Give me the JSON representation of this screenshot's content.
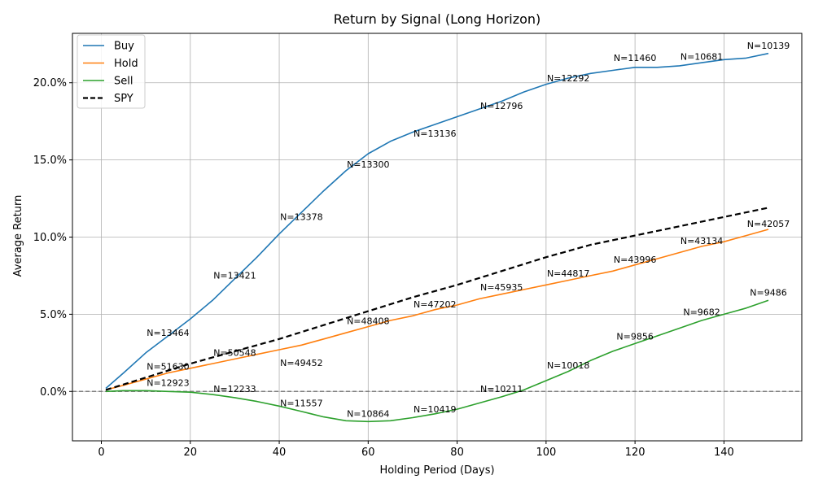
{
  "chart_data": {
    "type": "line",
    "title": "Return by Signal (Long Horizon)",
    "xlabel": "Holding Period (Days)",
    "ylabel": "Average Return",
    "xlim": [
      -6.5,
      157.5
    ],
    "ylim": [
      -0.032,
      0.232
    ],
    "xticks": [
      0,
      20,
      40,
      60,
      80,
      100,
      120,
      140
    ],
    "xtick_labels": [
      "0",
      "20",
      "40",
      "60",
      "80",
      "100",
      "120",
      "140"
    ],
    "yticks": [
      0.0,
      0.05,
      0.1,
      0.15,
      0.2
    ],
    "ytick_labels": [
      "0.0%",
      "5.0%",
      "10.0%",
      "15.0%",
      "20.0%"
    ],
    "grid": true,
    "legend_position": "top-left",
    "reference_line": {
      "y": 0.0,
      "style": "dashed",
      "color": "#808080"
    },
    "series": [
      {
        "name": "Buy",
        "color": "#1f77b4",
        "style": "solid",
        "x": [
          1,
          5,
          10,
          15,
          20,
          25,
          30,
          35,
          40,
          45,
          50,
          55,
          60,
          65,
          70,
          75,
          80,
          85,
          90,
          95,
          100,
          105,
          110,
          115,
          120,
          125,
          130,
          135,
          140,
          145,
          150
        ],
        "y": [
          0.002,
          0.012,
          0.025,
          0.036,
          0.047,
          0.059,
          0.073,
          0.087,
          0.102,
          0.116,
          0.13,
          0.143,
          0.154,
          0.162,
          0.168,
          0.173,
          0.178,
          0.183,
          0.188,
          0.194,
          0.199,
          0.203,
          0.206,
          0.208,
          0.21,
          0.21,
          0.211,
          0.213,
          0.215,
          0.216,
          0.219
        ]
      },
      {
        "name": "Hold",
        "color": "#ff7f0e",
        "style": "solid",
        "x": [
          1,
          5,
          10,
          15,
          20,
          25,
          30,
          35,
          40,
          45,
          50,
          55,
          60,
          65,
          70,
          75,
          80,
          85,
          90,
          95,
          100,
          105,
          110,
          115,
          120,
          125,
          130,
          135,
          140,
          145,
          150
        ],
        "y": [
          0.001,
          0.004,
          0.008,
          0.012,
          0.015,
          0.018,
          0.021,
          0.024,
          0.027,
          0.03,
          0.034,
          0.038,
          0.042,
          0.046,
          0.049,
          0.053,
          0.056,
          0.06,
          0.063,
          0.066,
          0.069,
          0.072,
          0.075,
          0.078,
          0.082,
          0.086,
          0.09,
          0.094,
          0.097,
          0.101,
          0.105
        ]
      },
      {
        "name": "Sell",
        "color": "#2ca02c",
        "style": "solid",
        "x": [
          1,
          5,
          10,
          15,
          20,
          25,
          30,
          35,
          40,
          45,
          50,
          55,
          60,
          65,
          70,
          75,
          80,
          85,
          90,
          95,
          100,
          105,
          110,
          115,
          120,
          125,
          130,
          135,
          140,
          145,
          150
        ],
        "y": [
          0.0,
          0.0005,
          0.0005,
          0.0,
          -0.0005,
          -0.002,
          -0.004,
          -0.0065,
          -0.0095,
          -0.013,
          -0.0165,
          -0.019,
          -0.0195,
          -0.019,
          -0.017,
          -0.0145,
          -0.0115,
          -0.0075,
          -0.0035,
          0.001,
          0.007,
          0.013,
          0.02,
          0.026,
          0.031,
          0.036,
          0.041,
          0.046,
          0.05,
          0.054,
          0.059
        ]
      },
      {
        "name": "SPY",
        "color": "#000000",
        "style": "dashed",
        "x": [
          1,
          10,
          20,
          30,
          40,
          50,
          60,
          70,
          80,
          90,
          100,
          110,
          120,
          130,
          140,
          150
        ],
        "y": [
          0.001,
          0.009,
          0.018,
          0.026,
          0.034,
          0.043,
          0.052,
          0.061,
          0.069,
          0.078,
          0.087,
          0.095,
          0.101,
          0.107,
          0.113,
          0.119
        ]
      }
    ],
    "annotations": [
      {
        "x": 15,
        "y": 0.036,
        "text": "N=13464"
      },
      {
        "x": 30,
        "y": 0.073,
        "text": "N=13421"
      },
      {
        "x": 45,
        "y": 0.111,
        "text": "N=13378"
      },
      {
        "x": 60,
        "y": 0.145,
        "text": "N=13300"
      },
      {
        "x": 75,
        "y": 0.165,
        "text": "N=13136"
      },
      {
        "x": 90,
        "y": 0.183,
        "text": "N=12796"
      },
      {
        "x": 105,
        "y": 0.201,
        "text": "N=12292"
      },
      {
        "x": 120,
        "y": 0.214,
        "text": "N=11460"
      },
      {
        "x": 135,
        "y": 0.215,
        "text": "N=10681"
      },
      {
        "x": 150,
        "y": 0.222,
        "text": "N=10139"
      },
      {
        "x": 15,
        "y": 0.014,
        "text": "N=51630"
      },
      {
        "x": 30,
        "y": 0.023,
        "text": "N=50548"
      },
      {
        "x": 45,
        "y": 0.0165,
        "text": "N=49452"
      },
      {
        "x": 60,
        "y": 0.0435,
        "text": "N=48408"
      },
      {
        "x": 75,
        "y": 0.0545,
        "text": "N=47202"
      },
      {
        "x": 90,
        "y": 0.0655,
        "text": "N=45935"
      },
      {
        "x": 105,
        "y": 0.0745,
        "text": "N=44817"
      },
      {
        "x": 120,
        "y": 0.0835,
        "text": "N=43996"
      },
      {
        "x": 135,
        "y": 0.0955,
        "text": "N=43134"
      },
      {
        "x": 150,
        "y": 0.1065,
        "text": "N=42057"
      },
      {
        "x": 15,
        "y": 0.0035,
        "text": "N=12923"
      },
      {
        "x": 30,
        "y": -0.0005,
        "text": "N=12233"
      },
      {
        "x": 45,
        "y": -0.0095,
        "text": "N=11557"
      },
      {
        "x": 60,
        "y": -0.0165,
        "text": "N=10864"
      },
      {
        "x": 75,
        "y": -0.0135,
        "text": "N=10419"
      },
      {
        "x": 90,
        "y": -0.0005,
        "text": "N=10211"
      },
      {
        "x": 105,
        "y": 0.015,
        "text": "N=10018"
      },
      {
        "x": 120,
        "y": 0.0335,
        "text": "N=9856"
      },
      {
        "x": 135,
        "y": 0.0495,
        "text": "N=9682"
      },
      {
        "x": 150,
        "y": 0.062,
        "text": "N=9486"
      }
    ]
  }
}
